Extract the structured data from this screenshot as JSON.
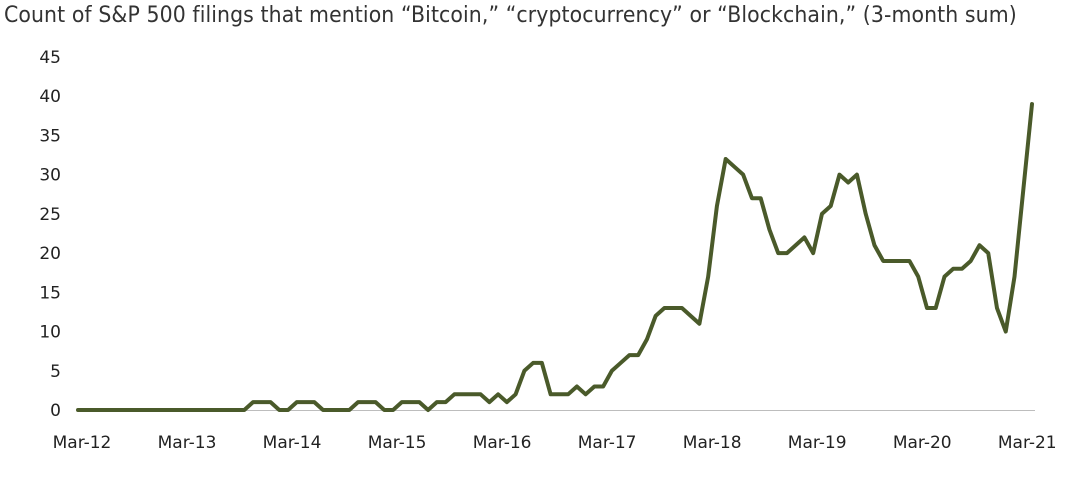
{
  "chart_data": {
    "type": "line",
    "title": "Count of S&P 500 filings that mention “Bitcoin,” “cryptocurrency” or “Blockchain,” (3-month sum)",
    "xlabel": "",
    "ylabel": "",
    "ylim": [
      0,
      45
    ],
    "yticks": [
      "0",
      "5",
      "10",
      "15",
      "20",
      "25",
      "30",
      "35",
      "40",
      "45"
    ],
    "xticks": [
      "Mar-12",
      "Mar-13",
      "Mar-14",
      "Mar-15",
      "Mar-16",
      "Mar-17",
      "Mar-18",
      "Mar-19",
      "Mar-20",
      "Mar-21"
    ],
    "grid": false,
    "legend": "none",
    "line_color": "#4a5a2a",
    "series": [
      {
        "values": [
          0,
          0,
          0,
          0,
          0,
          0,
          0,
          0,
          0,
          0,
          0,
          0,
          0,
          0,
          0,
          0,
          0,
          0,
          0,
          0,
          1,
          1,
          1,
          0,
          0,
          1,
          1,
          1,
          0,
          0,
          0,
          0,
          1,
          1,
          1,
          0,
          0,
          1,
          1,
          1,
          0,
          1,
          1,
          2,
          2,
          2,
          2,
          1,
          2,
          1,
          2,
          5,
          6,
          6,
          2,
          2,
          2,
          3,
          2,
          3,
          3,
          5,
          6,
          7,
          7,
          9,
          12,
          13,
          13,
          13,
          12,
          11,
          17,
          26,
          32,
          31,
          30,
          27,
          27,
          23,
          20,
          20,
          21,
          22,
          20,
          25,
          26,
          30,
          29,
          30,
          25,
          21,
          19,
          19,
          19,
          19,
          17,
          13,
          13,
          17,
          18,
          18,
          19,
          21,
          20,
          13,
          10,
          17,
          28,
          39
        ]
      }
    ]
  }
}
